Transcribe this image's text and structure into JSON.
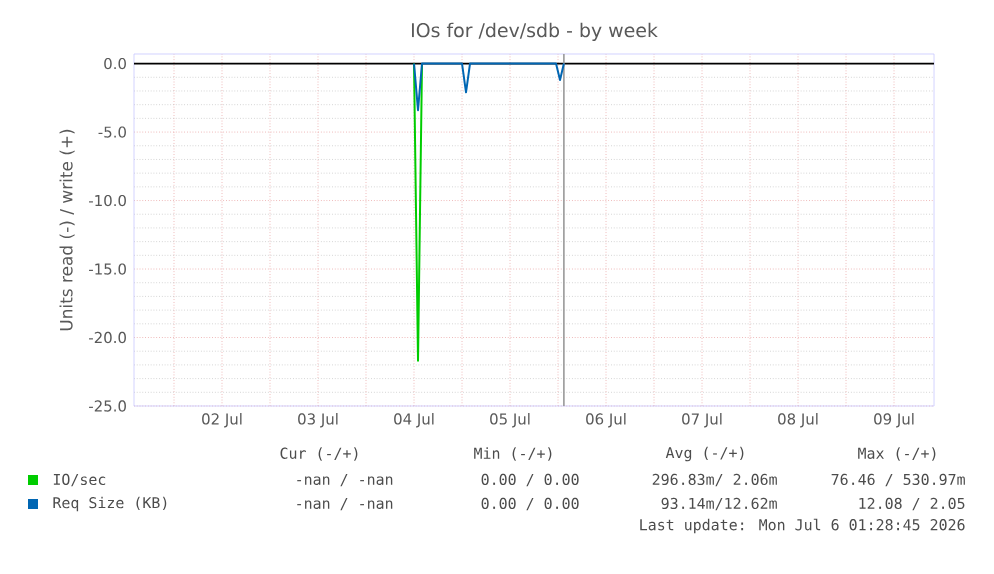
{
  "chart_data": {
    "type": "line",
    "title": "IOs for /dev/sdb - by week",
    "ylabel": "Units read (-) / write (+)",
    "series": [
      {
        "name": "IO/sec",
        "color": "#00cc00",
        "x": [
          "2026-07-04T12:00",
          "2026-07-04T13:00",
          "2026-07-04T14:00"
        ],
        "values": [
          0,
          -21.7,
          0
        ]
      },
      {
        "name": "Req Size (KB)",
        "color": "#0066b3",
        "x": [
          "2026-07-04T12:00",
          "2026-07-04T13:00",
          "2026-07-04T14:00",
          "2026-07-05T00:00",
          "2026-07-05T01:00",
          "2026-07-05T02:00",
          "2026-07-05T23:30",
          "2026-07-06T00:30",
          "2026-07-06T01:28"
        ],
        "values": [
          0,
          -3.4,
          0,
          0,
          -2.1,
          0,
          0,
          -1.2,
          0
        ]
      }
    ],
    "xlim": [
      "2026-07-01T14:00",
      "2026-07-09T22:00"
    ],
    "xticks": [
      {
        "value": "2026-07-02T00:00",
        "label": null
      },
      {
        "value": "2026-07-02T12:00",
        "label": "02 Jul"
      },
      {
        "value": "2026-07-03T00:00",
        "label": null
      },
      {
        "value": "2026-07-03T12:00",
        "label": "03 Jul"
      },
      {
        "value": "2026-07-04T00:00",
        "label": null
      },
      {
        "value": "2026-07-04T12:00",
        "label": "04 Jul"
      },
      {
        "value": "2026-07-05T00:00",
        "label": null
      },
      {
        "value": "2026-07-05T12:00",
        "label": "05 Jul"
      },
      {
        "value": "2026-07-06T00:00",
        "label": null
      },
      {
        "value": "2026-07-06T12:00",
        "label": "06 Jul"
      },
      {
        "value": "2026-07-07T00:00",
        "label": null
      },
      {
        "value": "2026-07-07T12:00",
        "label": "07 Jul"
      },
      {
        "value": "2026-07-08T00:00",
        "label": null
      },
      {
        "value": "2026-07-08T12:00",
        "label": "08 Jul"
      },
      {
        "value": "2026-07-09T00:00",
        "label": null
      },
      {
        "value": "2026-07-09T12:00",
        "label": "09 Jul"
      }
    ],
    "ylim": [
      -25,
      0.7
    ],
    "yticks": [
      {
        "value": -25,
        "label": "-25.0"
      },
      {
        "value": -20,
        "label": "-20.0"
      },
      {
        "value": -15,
        "label": "-15.0"
      },
      {
        "value": -10,
        "label": "-10.0"
      },
      {
        "value": -5,
        "label": "-5.0"
      },
      {
        "value": 0,
        "label": "0.0"
      }
    ],
    "grid": true,
    "legend": "bottom",
    "ref_lines": [
      {
        "axis": "y",
        "value": 0,
        "color": "#000000"
      },
      {
        "axis": "x",
        "value": "2026-07-06T01:28",
        "color": "#999999"
      }
    ],
    "annotations": [
      "Cur (-/+)",
      "Min (-/+)",
      "Avg (-/+)",
      "Max (-/+)",
      "-nan / -nan",
      "0.00 / 0.00",
      "296.83m/ 2.06m",
      "76.46 / 530.97m",
      "-nan / -nan",
      "0.00 / 0.00",
      "93.14m/12.62m",
      "12.08 / 2.05",
      "Last update: Mon Jul  6 01:28:45 2026"
    ]
  }
}
